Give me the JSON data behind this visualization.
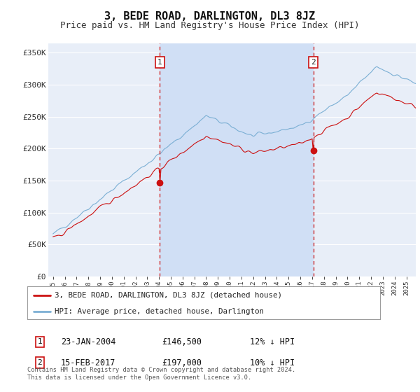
{
  "title": "3, BEDE ROAD, DARLINGTON, DL3 8JZ",
  "subtitle": "Price paid vs. HM Land Registry's House Price Index (HPI)",
  "title_fontsize": 11,
  "subtitle_fontsize": 9,
  "background_color": "#ffffff",
  "plot_bg_color": "#e8eef8",
  "shaded_bg_color": "#d0dff5",
  "grid_color": "#ffffff",
  "hpi_color": "#7bafd4",
  "sold_color": "#cc1111",
  "marker1_x": 2004.07,
  "marker1_value": 146500,
  "marker2_x": 2017.12,
  "marker2_value": 197000,
  "marker1_label": "23-JAN-2004",
  "marker1_price": "£146,500",
  "marker1_pct": "12% ↓ HPI",
  "marker2_label": "15-FEB-2017",
  "marker2_price": "£197,000",
  "marker2_pct": "10% ↓ HPI",
  "legend_line1": "3, BEDE ROAD, DARLINGTON, DL3 8JZ (detached house)",
  "legend_line2": "HPI: Average price, detached house, Darlington",
  "footer": "Contains HM Land Registry data © Crown copyright and database right 2024.\nThis data is licensed under the Open Government Licence v3.0.",
  "xlim_left": 1994.6,
  "xlim_right": 2025.8,
  "ylim": [
    0,
    365000
  ],
  "yticks": [
    0,
    50000,
    100000,
    150000,
    200000,
    250000,
    300000,
    350000
  ],
  "ytick_labels": [
    "£0",
    "£50K",
    "£100K",
    "£150K",
    "£200K",
    "£250K",
    "£300K",
    "£350K"
  ]
}
